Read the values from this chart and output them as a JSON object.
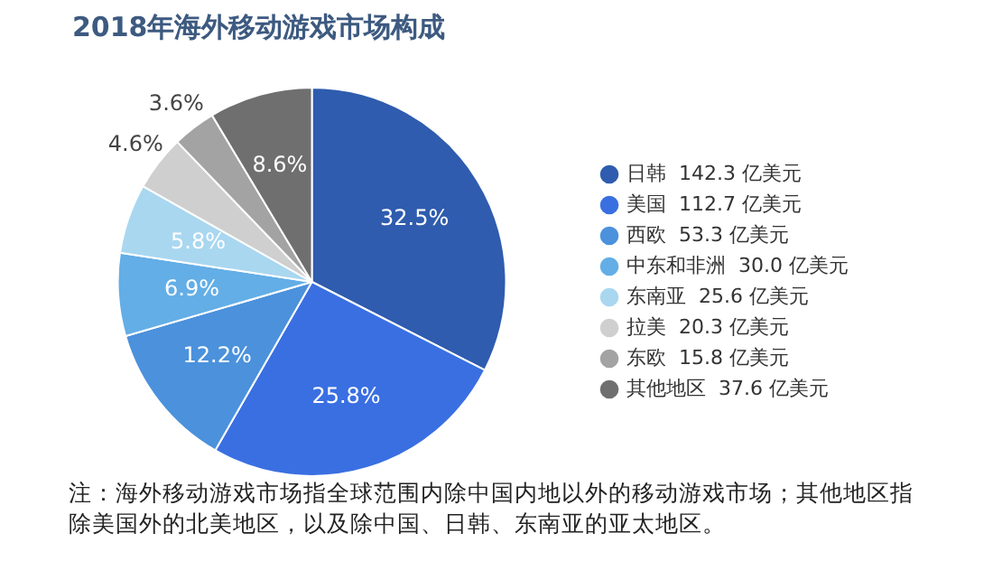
{
  "chart_data": {
    "type": "pie",
    "title": "2018年海外移动游戏市场构成",
    "categories": [
      "日韩  142.3 亿美元",
      "美国  112.7 亿美元",
      "西欧  53.3 亿美元",
      "中东和非洲  30.0 亿美元",
      "东南亚  25.6 亿美元",
      "拉美  20.3 亿美元",
      "东欧  15.8 亿美元",
      "其他地区  37.6 亿美元"
    ],
    "values": [
      32.5,
      25.8,
      12.2,
      6.9,
      5.8,
      4.6,
      3.6,
      8.6
    ],
    "value_labels": [
      "32.5%",
      "25.8%",
      "12.2%",
      "6.9%",
      "5.8%",
      "4.6%",
      "3.6%",
      "8.6%"
    ],
    "colors": [
      "#2f5cae",
      "#3a6fe2",
      "#4b91dc",
      "#63aee6",
      "#a9d7f0",
      "#cfcfcf",
      "#a3a3a3",
      "#6f6f6f"
    ],
    "legend": "right",
    "annotations": [
      "注：海外移动游戏市场指全球范围内除中国内地以外的移动游戏市场；其他地区指除美国外的北美地区，以及除中国、日韩、东南亚的亚太地区。"
    ]
  }
}
